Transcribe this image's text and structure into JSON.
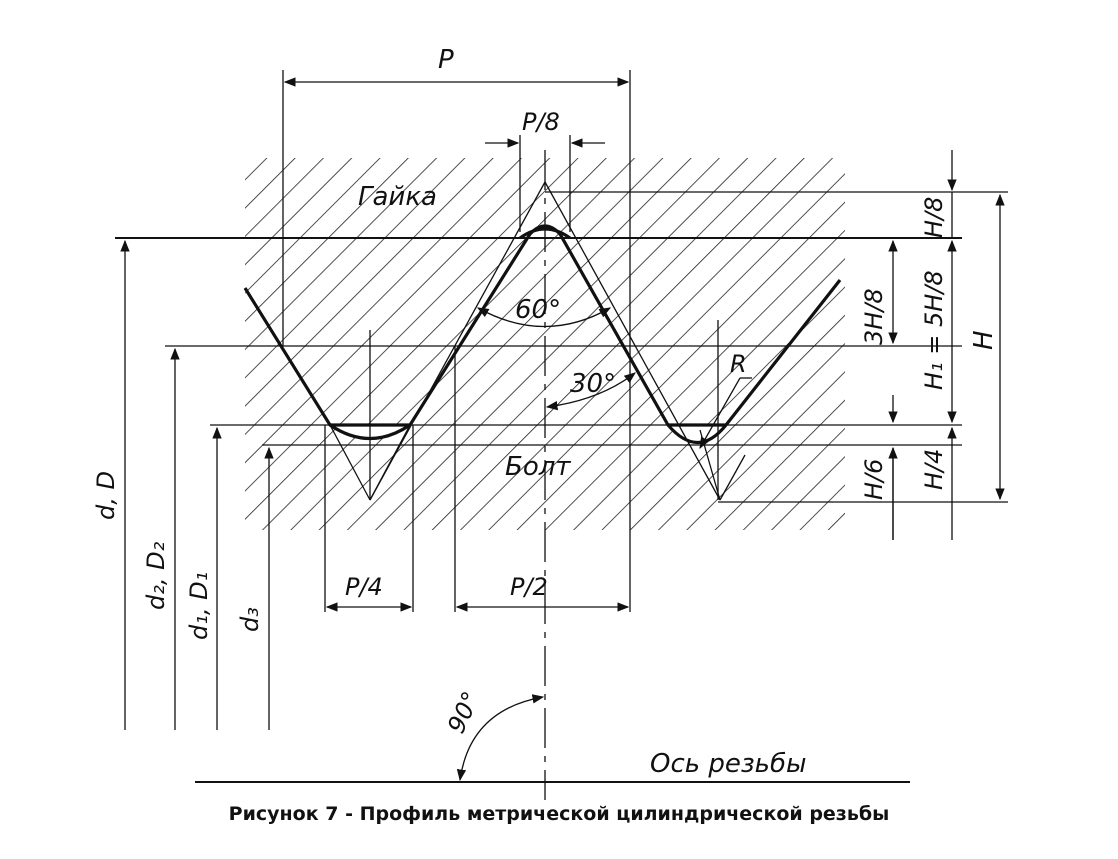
{
  "figure": {
    "caption": "Рисунок 7 - Профиль метрической цилиндрической резьбы",
    "labels": {
      "pitch": "P",
      "p8": "P/8",
      "nut": "Гайка",
      "bolt": "Болт",
      "angle60": "60°",
      "angle30": "30°",
      "angle90": "90°",
      "radius": "R",
      "p4": "P/4",
      "p2": "P/2",
      "axis": "Ось резьбы",
      "h8": "H/8",
      "h3_8": "3H/8",
      "h1": "H₁ = 5H/8",
      "h": "H",
      "h4": "H/4",
      "h6": "H/6",
      "d": "d, D",
      "d2": "d₂, D₂",
      "d1": "d₁, D₁",
      "d3": "d₃"
    }
  }
}
